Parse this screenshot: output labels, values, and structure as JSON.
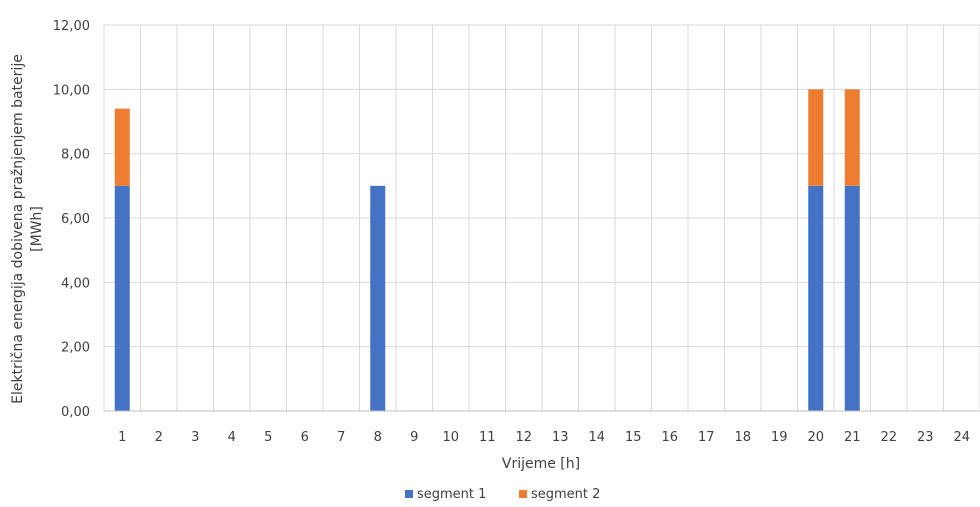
{
  "chart_data": {
    "type": "bar",
    "stacked": true,
    "categories": [
      "1",
      "2",
      "3",
      "4",
      "5",
      "6",
      "7",
      "8",
      "9",
      "10",
      "11",
      "12",
      "13",
      "14",
      "15",
      "16",
      "17",
      "18",
      "19",
      "20",
      "21",
      "22",
      "23",
      "24"
    ],
    "series": [
      {
        "name": "segment 1",
        "color": "#4472C4",
        "values": [
          7,
          0,
          0,
          0,
          0,
          0,
          0,
          7,
          0,
          0,
          0,
          0,
          0,
          0,
          0,
          0,
          0,
          0,
          0,
          7,
          7,
          0,
          0,
          0
        ]
      },
      {
        "name": "segment 2",
        "color": "#ED7D31",
        "values": [
          2.4,
          0,
          0,
          0,
          0,
          0,
          0,
          0,
          0,
          0,
          0,
          0,
          0,
          0,
          0,
          0,
          0,
          0,
          0,
          3,
          3,
          0,
          0,
          0
        ]
      }
    ],
    "title": "",
    "xlabel": "Vrijeme [h]",
    "ylabel_lines": [
      "Električna energija dobivena pražnjenjem baterije",
      "[MWh]"
    ],
    "ylim": [
      0,
      12
    ],
    "yticks": [
      "0,00",
      "2,00",
      "4,00",
      "6,00",
      "8,00",
      "10,00",
      "12,00"
    ],
    "grid": true,
    "legend_position": "bottom"
  }
}
